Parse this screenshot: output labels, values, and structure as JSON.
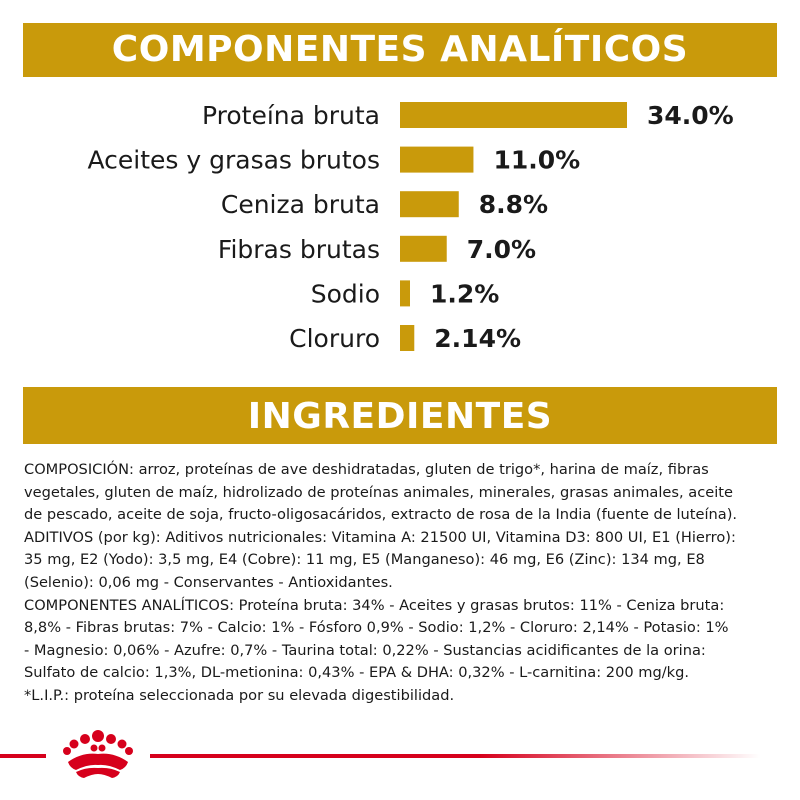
{
  "analytic": {
    "title": "COMPONENTES ANALÍTICOS"
  },
  "ingredients": {
    "title": "INGREDIENTES",
    "lines": [
      "COMPOSICIÓN: arroz, proteínas de ave deshidratadas, gluten de trigo*, harina de maíz, fibras",
      "vegetales, gluten de maíz, hidrolizado de proteínas animales, minerales, grasas animales, aceite",
      "de pescado, aceite de soja, fructo-oligosacáridos, extracto de rosa de la India (fuente de luteína).",
      "ADITIVOS (por kg): Aditivos nutricionales: Vitamina A: 21500 UI, Vitamina D3: 800 UI, E1 (Hierro):",
      "35 mg, E2 (Yodo): 3,5 mg, E4 (Cobre): 11 mg, E5 (Manganeso): 46 mg, E6 (Zinc): 134 mg, E8",
      "(Selenio): 0,06 mg - Conservantes - Antioxidantes.",
      "COMPONENTES ANALÍTICOS: Proteína bruta: 34% - Aceites y grasas brutos: 11% - Ceniza bruta:",
      "8,8% - Fibras brutas: 7% - Calcio: 1% - Fósforo 0,9% - Sodio: 1,2% - Cloruro: 2,14% - Potasio: 1%",
      "- Magnesio: 0,06% - Azufre: 0,7% - Taurina total: 0,22% - Sustancias acidificantes de la orina:",
      "Sulfato de calcio: 1,3%, DL-metionina: 0,43% - EPA & DHA: 0,32% - L-carnitina: 200 mg/kg.",
      "*L.I.P.: proteína seleccionada por su elevada digestibilidad."
    ]
  },
  "brand": {
    "logo_icon": "crown-icon",
    "accent": "#c99a0b",
    "footer_color": "#d6001c"
  },
  "chart_data": {
    "type": "bar",
    "orientation": "horizontal",
    "categories": [
      "Proteína bruta",
      "Aceites y grasas brutos",
      "Ceniza bruta",
      "Fibras brutas",
      "Sodio",
      "Cloruro"
    ],
    "values": [
      34.0,
      11.0,
      8.8,
      7.0,
      1.2,
      2.14
    ],
    "value_labels": [
      "34.0%",
      "11.0%",
      "8.8%",
      "7.0%",
      "1.2%",
      "2.14%"
    ],
    "bar_color": "#c99a0b"
  }
}
